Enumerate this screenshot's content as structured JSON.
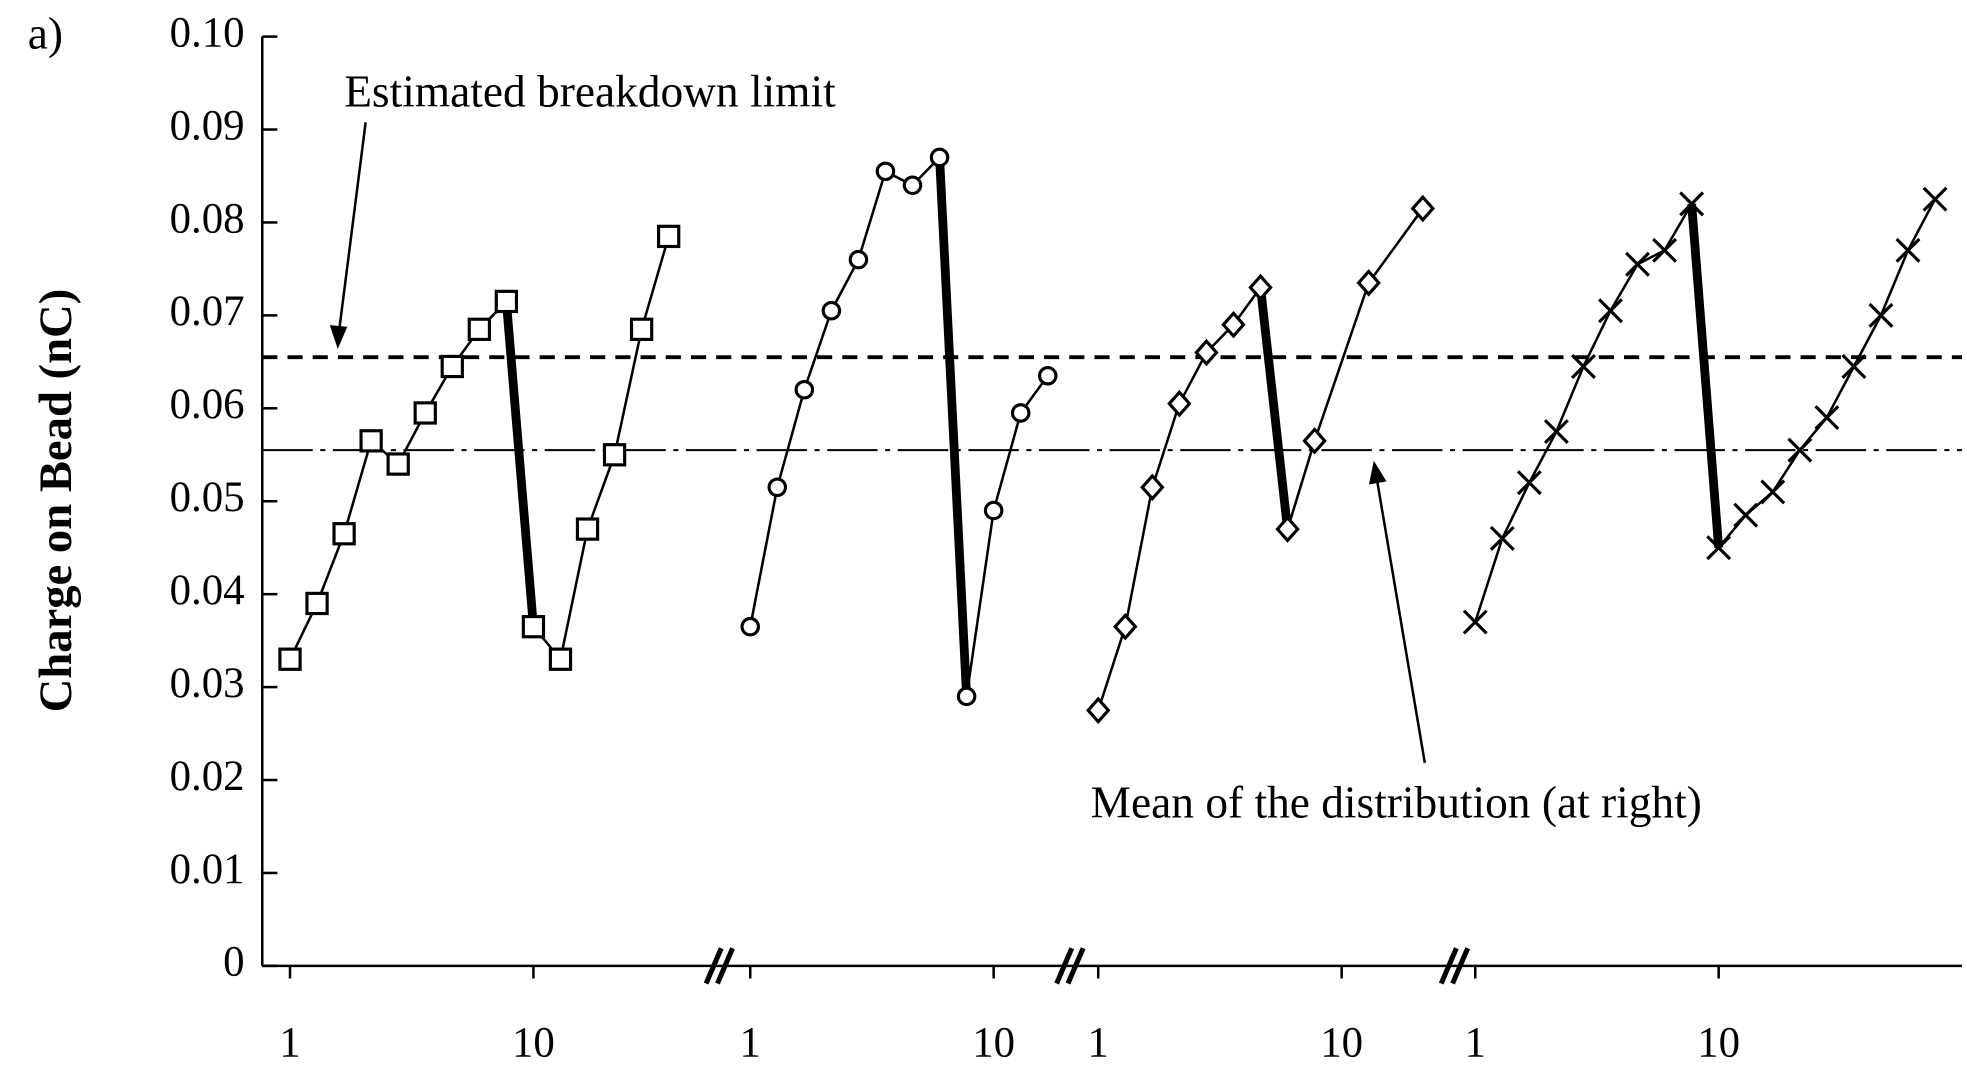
{
  "chart_data": {
    "type": "line",
    "panel_label": "a)",
    "y_label": "Charge on Bead (nC)",
    "ylim": [
      0,
      0.1
    ],
    "yticks": [
      0,
      0.01,
      0.02,
      0.03,
      0.04,
      0.05,
      0.06,
      0.07,
      0.08,
      0.09,
      {
        "value": 0.1,
        "label": "0.10"
      }
    ],
    "reference_lines": [
      {
        "value": 0.0655,
        "style": "dashed",
        "label": "Estimated breakdown limit"
      },
      {
        "value": 0.0555,
        "style": "dashdot",
        "label": "Mean of the distribution (at right)"
      }
    ],
    "series": [
      {
        "marker": "square",
        "color": "#000",
        "xticks": [
          1,
          10
        ],
        "x": [
          1,
          2,
          3,
          4,
          5,
          6,
          7,
          8,
          9,
          10,
          11,
          12,
          13,
          14,
          15
        ],
        "values": [
          0.033,
          0.039,
          0.0465,
          0.0565,
          0.054,
          0.0595,
          0.0645,
          0.0685,
          0.0715,
          0.0365,
          0.033,
          0.047,
          0.055,
          0.0685,
          0.0785
        ]
      },
      {
        "marker": "circle",
        "color": "#000",
        "xticks": [
          1,
          10
        ],
        "x": [
          1,
          2,
          3,
          4,
          5,
          6,
          7,
          8,
          9,
          10,
          11,
          12
        ],
        "values": [
          0.0365,
          0.0515,
          0.062,
          0.0705,
          0.076,
          0.0855,
          0.084,
          0.087,
          0.029,
          0.049,
          0.0595,
          0.0635
        ]
      },
      {
        "marker": "diamond",
        "color": "#000",
        "xticks": [
          1,
          10
        ],
        "x": [
          1,
          2,
          3,
          4,
          5,
          6,
          7,
          8,
          9,
          11,
          13
        ],
        "values": [
          0.0275,
          0.0365,
          0.0515,
          0.0605,
          0.066,
          0.069,
          0.073,
          0.047,
          0.0565,
          0.0735,
          0.0815
        ]
      },
      {
        "marker": "cross",
        "color": "#000",
        "xticks": [
          1,
          10
        ],
        "x": [
          1,
          2,
          3,
          4,
          5,
          6,
          7,
          8,
          9,
          10,
          11,
          12,
          13,
          14,
          15,
          16,
          17,
          18
        ],
        "values": [
          0.037,
          0.046,
          0.052,
          0.0575,
          0.0645,
          0.0705,
          0.0755,
          0.077,
          0.082,
          0.045,
          0.0485,
          0.051,
          0.0555,
          0.059,
          0.0645,
          0.07,
          0.077,
          0.0825
        ]
      }
    ]
  }
}
